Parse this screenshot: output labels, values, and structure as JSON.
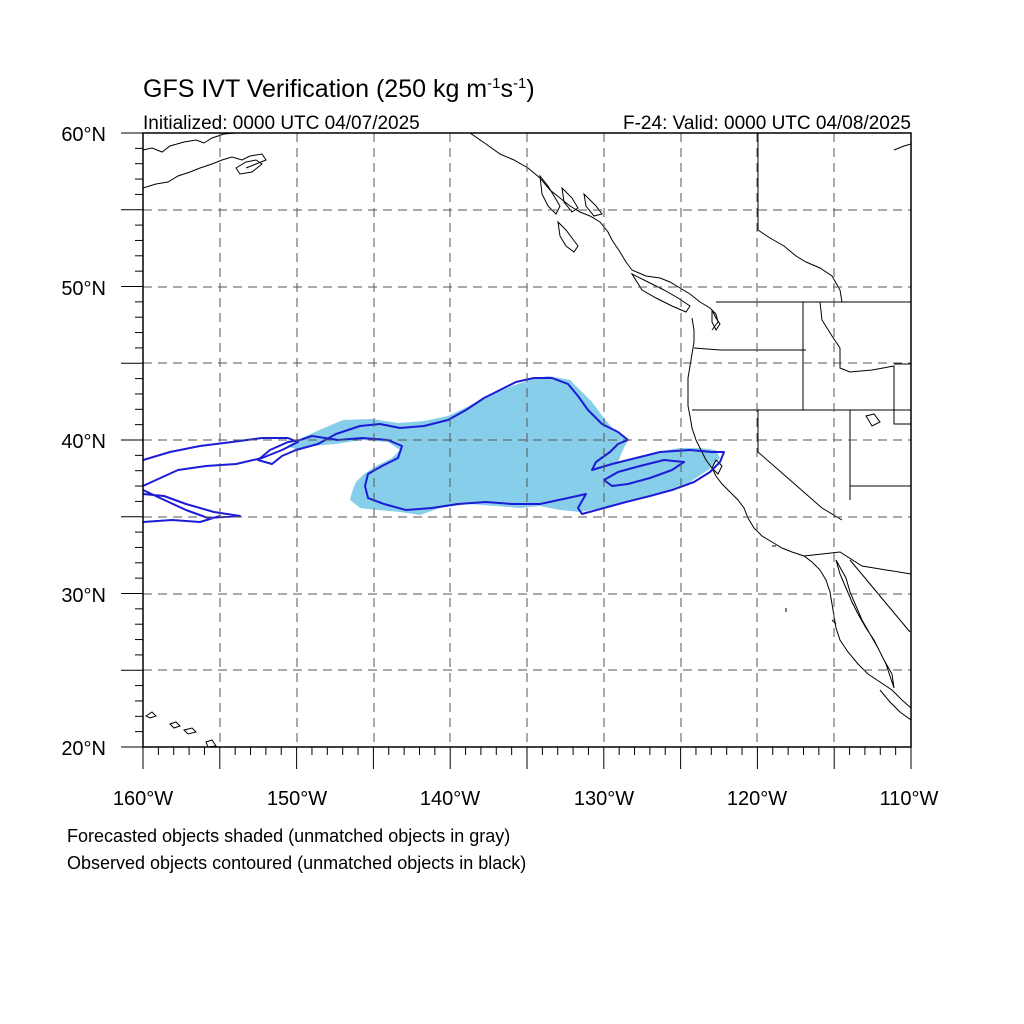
{
  "title": {
    "main": "GFS IVT Verification (250 kg m",
    "sup1": "-1",
    "mid": "s",
    "sup2": "-1",
    "end": ")"
  },
  "subtitle": {
    "left": "Initialized: 0000 UTC 04/07/2025",
    "right": "F-24: Valid: 0000 UTC 04/08/2025"
  },
  "axes": {
    "lat_labels": [
      "60°N",
      "50°N",
      "40°N",
      "30°N",
      "20°N"
    ],
    "lon_labels": [
      "160°W",
      "150°W",
      "140°W",
      "130°W",
      "120°W",
      "110°W"
    ],
    "lat_range": [
      20,
      60
    ],
    "lon_range": [
      -160,
      -110
    ],
    "grid": "dashed, every 5 degrees"
  },
  "captions": {
    "line1": "Forecasted objects shaded (unmatched objects in gray)",
    "line2": "Observed objects contoured (unmatched objects in black)"
  },
  "colors": {
    "forecast_fill": "#87ceeb",
    "observed_contour": "#1c1cd6",
    "coastline": "#000000",
    "grid": "#555555"
  }
}
